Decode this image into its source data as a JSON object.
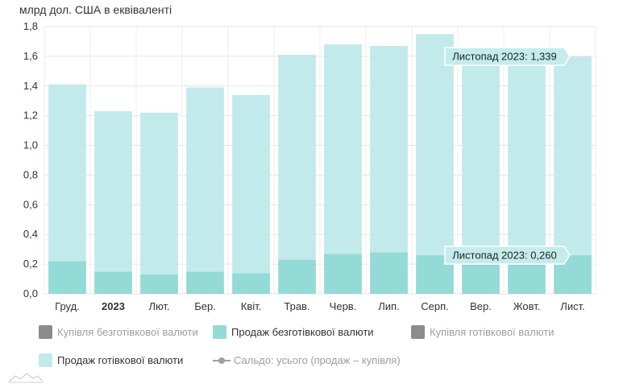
{
  "chart_data": {
    "type": "bar",
    "stacked": true,
    "unit_label": "млрд дол. США в еквіваленті",
    "categories": [
      "Груд.",
      "2023",
      "Лют.",
      "Бер.",
      "Квіт.",
      "Трав.",
      "Черв.",
      "Лип.",
      "Серп.",
      "Вер.",
      "Жовт.",
      "Лист."
    ],
    "bold_category": "2023",
    "y_ticks": [
      "0,0",
      "0,2",
      "0,4",
      "0,6",
      "0,8",
      "1,0",
      "1,2",
      "1,4",
      "1,6",
      "1,8"
    ],
    "ylim": [
      0,
      1.8
    ],
    "grid": true,
    "series": [
      {
        "name": "Продаж безготівкової валюти",
        "color": "#94dad7",
        "values": [
          0.22,
          0.15,
          0.13,
          0.15,
          0.14,
          0.23,
          0.27,
          0.28,
          0.26,
          0.25,
          0.25,
          0.26
        ]
      },
      {
        "name": "Продаж готівкової валюти",
        "color": "#c3eaeb",
        "values": [
          1.19,
          1.08,
          1.09,
          1.24,
          1.2,
          1.38,
          1.41,
          1.39,
          1.49,
          1.33,
          1.33,
          1.339
        ]
      }
    ],
    "tooltips": [
      {
        "text": "Листопад 2023: 1,339",
        "category_index": 11,
        "series_index": 1
      },
      {
        "text": "Листопад 2023: 0,260",
        "category_index": 11,
        "series_index": 0
      }
    ],
    "legend": {
      "placement": "bottom",
      "items": [
        {
          "label": "Купівля безготівкової валюти",
          "color": "#8c8c8c",
          "style": "square",
          "active": false
        },
        {
          "label": "Продаж безготівкової валюти",
          "color": "#94dad7",
          "style": "square",
          "active": true
        },
        {
          "label": "Купівля готівкової валюти",
          "color": "#8c8c8c",
          "style": "square",
          "active": false
        },
        {
          "label": "Продаж готівкової валюти",
          "color": "#c3eaeb",
          "style": "square",
          "active": true
        },
        {
          "label": "Сальдо: усього (продаж – купівля)",
          "color": "#9aa0a6",
          "style": "line",
          "active": false
        }
      ]
    }
  }
}
